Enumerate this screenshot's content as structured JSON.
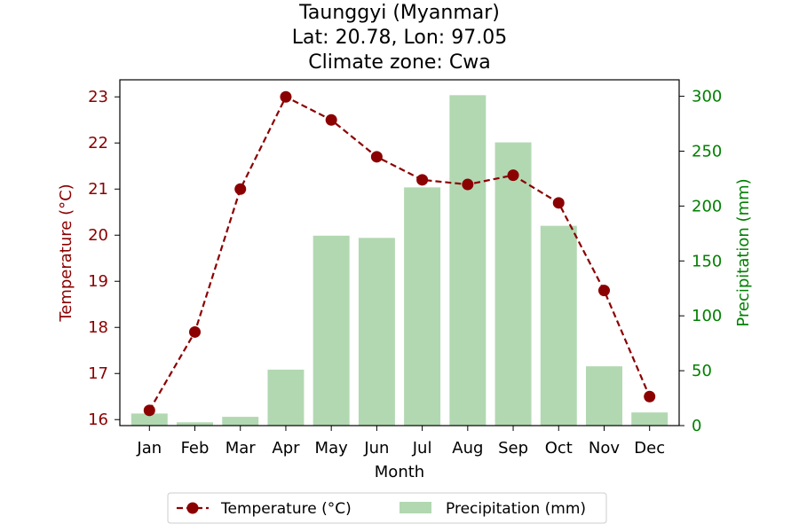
{
  "chart_data": {
    "type": "bar+line",
    "title_lines": [
      "Taunggyi (Myanmar)",
      "Lat: 20.78, Lon: 97.05",
      "Climate zone: Cwa"
    ],
    "xlabel": "Month",
    "categories": [
      "Jan",
      "Feb",
      "Mar",
      "Apr",
      "May",
      "Jun",
      "Jul",
      "Aug",
      "Sep",
      "Oct",
      "Nov",
      "Dec"
    ],
    "temperature": {
      "name": "Temperature (°C)",
      "axis_label": "Temperature (°C)",
      "values": [
        16.2,
        17.9,
        21.0,
        23.0,
        22.5,
        21.7,
        21.2,
        21.1,
        21.3,
        20.7,
        18.8,
        16.5
      ],
      "ylim": [
        15.87,
        23.37
      ],
      "ticks": [
        16,
        17,
        18,
        19,
        20,
        21,
        22,
        23
      ],
      "color": "#8b0000"
    },
    "precipitation": {
      "name": "Precipitation (mm)",
      "axis_label": "Precipitation (mm)",
      "values": [
        11,
        3,
        8,
        51,
        173,
        171,
        217,
        301,
        258,
        182,
        54,
        12
      ],
      "ylim": [
        0,
        315
      ],
      "ticks": [
        0,
        50,
        100,
        150,
        200,
        250,
        300
      ],
      "color": "#b2d8b2",
      "axis_color": "#008000"
    },
    "legend_placement": "bottom-center",
    "grid": false
  }
}
